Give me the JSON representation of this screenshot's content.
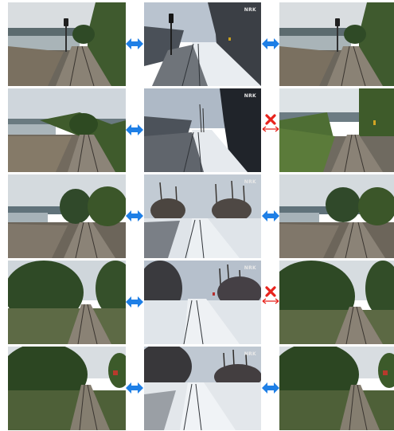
{
  "watermark": "NRK",
  "connector_icons": {
    "match": "double-arrow-icon",
    "mismatch": "cross-arrow-icon"
  },
  "colors": {
    "match_arrow": "#1e7fe6",
    "mismatch_arrow": "#e8231c"
  },
  "rows": [
    {
      "left": "summer",
      "center": "winter",
      "right": "summer",
      "left_connector": "match",
      "right_connector": "match"
    },
    {
      "left": "summer",
      "center": "winter",
      "right": "summer",
      "left_connector": "match",
      "right_connector": "mismatch"
    },
    {
      "left": "summer",
      "center": "winter",
      "right": "summer",
      "left_connector": "match",
      "right_connector": "match"
    },
    {
      "left": "summer",
      "center": "winter",
      "right": "summer",
      "left_connector": "match",
      "right_connector": "mismatch"
    },
    {
      "left": "summer",
      "center": "winter",
      "right": "summer",
      "left_connector": "match",
      "right_connector": "match"
    }
  ]
}
